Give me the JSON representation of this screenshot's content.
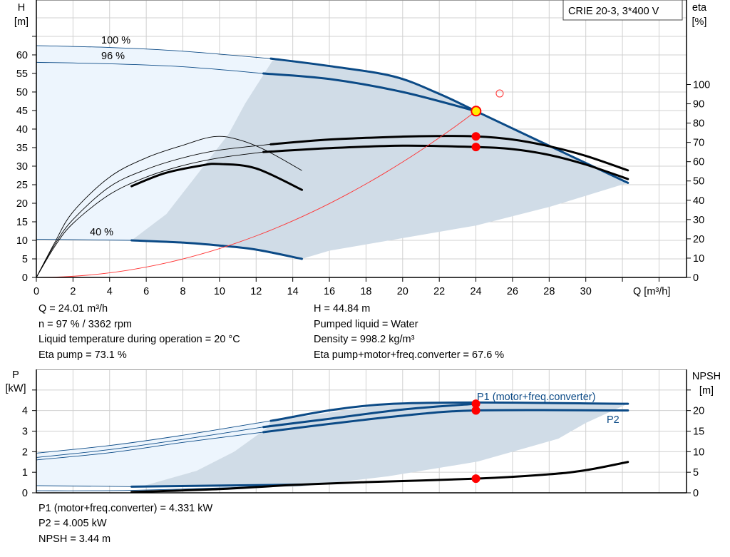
{
  "chart_data": [
    {
      "type": "line",
      "title": "CRIE 20-3, 3*400 V",
      "xlabel": "Q [m³/h]",
      "ylabel": "H\n[m]",
      "y2label": "eta\n[%]",
      "xlim": [
        0,
        35.5
      ],
      "ylim": [
        0,
        74.8
      ],
      "y2lim": [
        0,
        143.8
      ],
      "x_ticks": [
        0,
        2,
        4,
        6,
        8,
        10,
        12,
        14,
        16,
        18,
        20,
        22,
        24,
        26,
        28,
        30
      ],
      "y_ticks": [
        0,
        5,
        10,
        15,
        20,
        25,
        30,
        35,
        40,
        45,
        50,
        55,
        60
      ],
      "y2_ticks": [
        0,
        10,
        20,
        30,
        40,
        50,
        60,
        70,
        80,
        90,
        100
      ],
      "grid": true,
      "annotations": [
        "100 %",
        "96 %",
        "40 %"
      ],
      "colors": {
        "curve": "#0b4a86",
        "eta": "#000000",
        "system": "#ff3333",
        "region_light": "#edf5fd",
        "region_dark": "#d0dce7",
        "point": "#ff0000",
        "duty_point": "#ffee00"
      },
      "regions": {
        "light": [
          [
            0,
            62.5
          ],
          [
            4,
            62
          ],
          [
            8,
            61
          ],
          [
            12.9,
            58.5
          ],
          [
            11.4,
            46.9
          ],
          [
            10.5,
            38.7
          ],
          [
            8.9,
            28.5
          ],
          [
            7.1,
            17.1
          ],
          [
            5.2,
            10
          ],
          [
            0,
            10.3
          ]
        ],
        "dark": [
          [
            12.9,
            58.5
          ],
          [
            16,
            57
          ],
          [
            19.5,
            54.2
          ],
          [
            22,
            49.5
          ],
          [
            24,
            44.84
          ],
          [
            28,
            35.5
          ],
          [
            32.3,
            25.5
          ],
          [
            28,
            19
          ],
          [
            24,
            14
          ],
          [
            20,
            10.6
          ],
          [
            16,
            7.2
          ],
          [
            14.5,
            5
          ],
          [
            12,
            7.5
          ],
          [
            10,
            8.6
          ],
          [
            8,
            9.4
          ],
          [
            5.2,
            10
          ],
          [
            7.1,
            17.1
          ],
          [
            8.9,
            28.5
          ],
          [
            10.5,
            38.7
          ],
          [
            11.4,
            46.9
          ]
        ]
      },
      "series": [
        {
          "axis": "H",
          "color": "curve",
          "thin": [
            [
              0,
              62.5
            ],
            [
              4,
              62
            ],
            [
              8,
              61
            ],
            [
              12.8,
              59
            ]
          ],
          "thick": [
            [
              12.8,
              59
            ],
            [
              16,
              57
            ],
            [
              19.5,
              54.2
            ],
            [
              22,
              49.5
            ],
            [
              24,
              44.84
            ],
            [
              28,
              35.5
            ],
            [
              32.3,
              25.5
            ]
          ]
        },
        {
          "axis": "H",
          "color": "curve",
          "thin": [
            [
              0,
              58
            ],
            [
              4,
              57.6
            ],
            [
              8,
              56.8
            ],
            [
              12.4,
              55
            ]
          ],
          "thick": [
            [
              12.4,
              55
            ],
            [
              16,
              53.5
            ],
            [
              20,
              50
            ],
            [
              24,
              44.84
            ]
          ]
        },
        {
          "axis": "H",
          "color": "curve",
          "thin": [
            [
              0,
              10.3
            ],
            [
              5.2,
              10
            ]
          ],
          "thick": [
            [
              5.2,
              10
            ],
            [
              8,
              9.4
            ],
            [
              10,
              8.6
            ],
            [
              12,
              7.5
            ],
            [
              14.5,
              5
            ]
          ]
        },
        {
          "axis": "eta",
          "color": "eta",
          "thin": [
            [
              0,
              0
            ],
            [
              1,
              18
            ],
            [
              2,
              34
            ],
            [
              4,
              52
            ],
            [
              6,
              62
            ],
            [
              8,
              68.5
            ],
            [
              9.7,
              73
            ],
            [
              11,
              71.5
            ],
            [
              12.5,
              66
            ],
            [
              14.5,
              55.4
            ]
          ],
          "thick": []
        },
        {
          "axis": "eta",
          "color": "eta",
          "thin": [],
          "thick": [
            [
              5.2,
              47.3
            ],
            [
              7,
              54
            ],
            [
              9,
              58
            ],
            [
              10,
              58.8
            ],
            [
              12,
              56.5
            ],
            [
              14.5,
              45.4
            ]
          ]
        },
        {
          "axis": "eta",
          "color": "eta",
          "thin": [
            [
              0,
              0
            ],
            [
              1,
              17
            ],
            [
              2,
              30
            ],
            [
              4,
              47
            ],
            [
              6,
              56
            ],
            [
              8,
              62
            ],
            [
              10,
              66
            ],
            [
              12.8,
              69
            ]
          ],
          "thick": [
            [
              12.8,
              69
            ],
            [
              16,
              71.5
            ],
            [
              20,
              73
            ],
            [
              22,
              73.3
            ],
            [
              24,
              73.1
            ],
            [
              26,
              71.5
            ],
            [
              28,
              68
            ],
            [
              30,
              63
            ],
            [
              32.3,
              55.5
            ]
          ]
        },
        {
          "axis": "eta",
          "color": "eta",
          "thin": [
            [
              0,
              0
            ],
            [
              1,
              16
            ],
            [
              2,
              28
            ],
            [
              4,
              43
            ],
            [
              6,
              52
            ],
            [
              8,
              58
            ],
            [
              10,
              62
            ],
            [
              12.4,
              65
            ]
          ],
          "thick": [
            [
              12.4,
              65
            ],
            [
              16,
              67
            ],
            [
              20,
              68.3
            ],
            [
              24,
              67.6
            ],
            [
              26,
              66.5
            ],
            [
              28,
              63.5
            ],
            [
              30,
              58.5
            ],
            [
              32.3,
              51
            ]
          ]
        }
      ],
      "system_curve": {
        "k": 0.0778,
        "q_max": 24
      },
      "duty_point": {
        "Q": 24.01,
        "H": 44.84
      },
      "eta_points": [
        {
          "Q": 24,
          "eta": 73.1
        },
        {
          "Q": 24,
          "eta": 67.6
        }
      ],
      "open_marker": {
        "Q": 25.3,
        "H": 49.6
      }
    },
    {
      "type": "line",
      "ylabel": "P\n[kW]",
      "y2label": "NPSH\n[m]",
      "xlim": [
        0,
        35.5
      ],
      "ylim": [
        0,
        6
      ],
      "y2lim": [
        0,
        30
      ],
      "y_ticks": [
        0,
        1,
        2,
        3,
        4
      ],
      "y2_ticks": [
        0,
        5,
        10,
        15,
        20
      ],
      "grid": true,
      "series_labels": [
        "P1 (motor+freq.converter)",
        "P2"
      ],
      "regions": {
        "light": [
          [
            0,
            1.93
          ],
          [
            4,
            2.3
          ],
          [
            8,
            2.8
          ],
          [
            12.8,
            3.5
          ],
          [
            12.6,
            3.15
          ],
          [
            10.8,
            2.0
          ],
          [
            8.75,
            1.07
          ],
          [
            5.7,
            0.3
          ],
          [
            5.2,
            0.35
          ],
          [
            0,
            0.35
          ]
        ],
        "dark": [
          [
            12.8,
            3.5
          ],
          [
            19.5,
            4.33
          ],
          [
            32.3,
            4.33
          ],
          [
            30,
            3.4
          ],
          [
            28.5,
            2.63
          ],
          [
            24.1,
            1.52
          ],
          [
            19.2,
            0.8
          ],
          [
            14.4,
            0.3
          ],
          [
            5.7,
            0.3
          ],
          [
            8.75,
            1.07
          ],
          [
            10.8,
            2.0
          ],
          [
            12.6,
            3.15
          ]
        ]
      },
      "series": [
        {
          "axis": "P",
          "color": "curve",
          "thin": [
            [
              0,
              1.93
            ],
            [
              4,
              2.3
            ],
            [
              8,
              2.8
            ],
            [
              12.8,
              3.5
            ]
          ],
          "thick": [
            [
              12.8,
              3.5
            ],
            [
              19.5,
              4.33
            ],
            [
              32.3,
              4.33
            ]
          ]
        },
        {
          "axis": "P",
          "color": "curve",
          "thin": [
            [
              0,
              1.72
            ],
            [
              4,
              2.1
            ],
            [
              8,
              2.6
            ],
            [
              12.4,
              3.2
            ]
          ],
          "thick": [
            [
              12.4,
              3.2
            ],
            [
              16,
              3.6
            ],
            [
              20,
              4.05
            ],
            [
              24,
              4.331
            ]
          ]
        },
        {
          "axis": "P",
          "color": "curve",
          "thin": [
            [
              0,
              1.6
            ],
            [
              4,
              1.95
            ],
            [
              8,
              2.45
            ],
            [
              12.4,
              2.95
            ]
          ],
          "thick": [
            [
              12.4,
              2.95
            ],
            [
              16,
              3.35
            ],
            [
              20,
              3.75
            ],
            [
              24,
              4.005
            ],
            [
              32.3,
              4.005
            ]
          ]
        },
        {
          "axis": "P",
          "color": "curve",
          "thin": [
            [
              0,
              0.35
            ],
            [
              5.2,
              0.3
            ]
          ],
          "thick": [
            [
              5.2,
              0.3
            ],
            [
              14.5,
              0.4
            ]
          ]
        },
        {
          "axis": "P",
          "color": "curve",
          "thin": [
            [
              0,
              0.1
            ],
            [
              5.2,
              0.12
            ],
            [
              12.4,
              0.3
            ]
          ],
          "thick": []
        },
        {
          "axis": "NPSH",
          "color": "eta",
          "thin": [],
          "thick": [
            [
              5.2,
              0.2
            ],
            [
              10,
              0.9
            ],
            [
              14,
              1.9
            ],
            [
              18,
              2.6
            ],
            [
              24,
              3.44
            ],
            [
              28,
              4.5
            ],
            [
              30,
              5.5
            ],
            [
              32.3,
              7.5
            ]
          ]
        }
      ],
      "points": [
        {
          "axis": "P",
          "Q": 24,
          "v": 4.331
        },
        {
          "axis": "P",
          "Q": 24,
          "v": 4.005
        },
        {
          "axis": "NPSH",
          "Q": 24,
          "v": 3.44
        }
      ]
    }
  ],
  "results_top": {
    "left": [
      "Q = 24.01 m³/h",
      "n = 97 % / 3362 rpm",
      "Liquid temperature during operation = 20 °C",
      "Eta pump = 73.1 %"
    ],
    "right": [
      "H = 44.84 m",
      "Pumped liquid = Water",
      "Density = 998.2 kg/m³",
      "Eta pump+motor+freq.converter = 67.6 %"
    ]
  },
  "results_bottom": [
    "P1 (motor+freq.converter) = 4.331 kW",
    "P2 = 4.005 kW",
    "NPSH = 3.44 m"
  ]
}
